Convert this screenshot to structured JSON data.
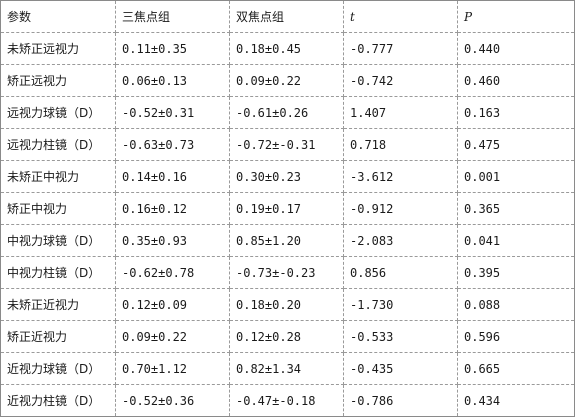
{
  "table": {
    "headers": [
      "参数",
      "三焦点组",
      "双焦点组",
      "t",
      "P"
    ],
    "rows": [
      [
        "未矫正远视力",
        "0.11±0.35",
        "0.18±0.45",
        "-0.777",
        "0.440"
      ],
      [
        "矫正远视力",
        "0.06±0.13",
        "0.09±0.22",
        "-0.742",
        "0.460"
      ],
      [
        "远视力球镜（D）",
        "-0.52±0.31",
        "-0.61±0.26",
        "1.407",
        "0.163"
      ],
      [
        "远视力柱镜（D）",
        "-0.63±0.73",
        "-0.72±-0.31",
        "0.718",
        "0.475"
      ],
      [
        "未矫正中视力",
        "0.14±0.16",
        "0.30±0.23",
        "-3.612",
        "0.001"
      ],
      [
        "矫正中视力",
        "0.16±0.12",
        "0.19±0.17",
        "-0.912",
        "0.365"
      ],
      [
        "中视力球镜（D）",
        "0.35±0.93",
        "0.85±1.20",
        "-2.083",
        "0.041"
      ],
      [
        "中视力柱镜（D）",
        "-0.62±0.78",
        "-0.73±-0.23",
        "0.856",
        "0.395"
      ],
      [
        "未矫正近视力",
        "0.12±0.09",
        "0.18±0.20",
        "-1.730",
        "0.088"
      ],
      [
        "矫正近视力",
        "0.09±0.22",
        "0.12±0.28",
        "-0.533",
        "0.596"
      ],
      [
        "近视力球镜（D）",
        "0.70±1.12",
        "0.82±1.34",
        "-0.435",
        "0.665"
      ],
      [
        "近视力柱镜（D）",
        "-0.52±0.36",
        "-0.47±-0.18",
        "-0.786",
        "0.434"
      ]
    ]
  }
}
